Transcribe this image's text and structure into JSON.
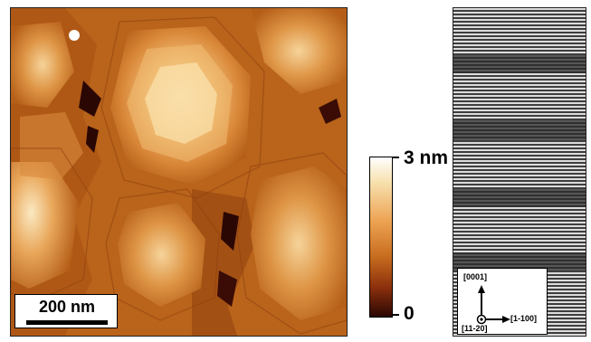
{
  "afm_panel": {
    "scale_bar_label": "200 nm",
    "colorbar": {
      "max_label": "3 nm",
      "min_label": "0"
    },
    "colors": {
      "bright": "#fff3cf",
      "mid": "#e48c3a",
      "dark": "#2a0703"
    }
  },
  "tem_panel": {
    "axes": {
      "up": "[0001]",
      "right": "[1-100]",
      "out_of_plane": "[11-20]"
    }
  }
}
